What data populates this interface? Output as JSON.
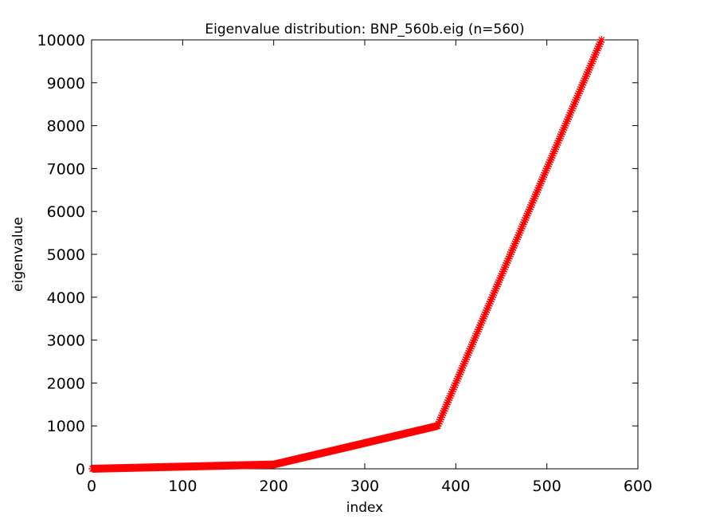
{
  "chart_data": {
    "type": "scatter",
    "title": "Eigenvalue distribution: BNP_560b.eig (n=560)",
    "xlabel": "index",
    "ylabel": "eigenvalue",
    "xlim": [
      0,
      600
    ],
    "ylim": [
      0,
      10000
    ],
    "xticks": [
      0,
      100,
      200,
      300,
      400,
      500,
      600
    ],
    "yticks": [
      0,
      1000,
      2000,
      3000,
      4000,
      5000,
      6000,
      7000,
      8000,
      9000,
      10000
    ],
    "grid": false,
    "legend": "none",
    "marker": "asterisk",
    "marker_color": "#ff0000",
    "series": [
      {
        "piecewise_linear": [
          {
            "x": 1,
            "y": 1
          },
          {
            "x": 200,
            "y": 100
          },
          {
            "x": 380,
            "y": 1000
          },
          {
            "x": 560,
            "y": 10000
          }
        ],
        "count": 560
      }
    ]
  }
}
